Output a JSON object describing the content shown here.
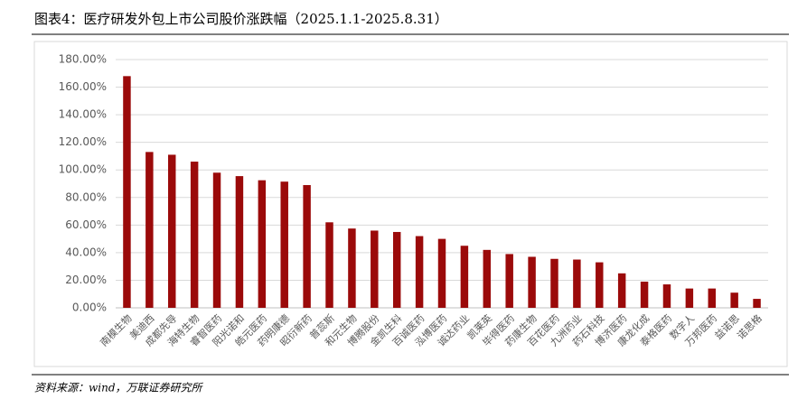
{
  "header": {
    "title": "图表4：医疗研发外包上市公司股价涨跌幅（2025.1.1-2025.8.31）"
  },
  "chart_data": {
    "type": "bar",
    "categories": [
      "南模生物",
      "美迪西",
      "成都先导",
      "海特生物",
      "睿智医药",
      "阳光诺和",
      "皓元医药",
      "药明康德",
      "昭衍新药",
      "普蕊斯",
      "和元生物",
      "博腾股份",
      "金凯生科",
      "百诚医药",
      "泓博医药",
      "诚达药业",
      "凯莱英",
      "毕得医药",
      "药康生物",
      "百花医药",
      "九洲药业",
      "药石科技",
      "博济医药",
      "康龙化成",
      "泰格医药",
      "数字人",
      "万邦医药",
      "益诺思",
      "诺思格"
    ],
    "values": [
      168,
      113,
      111,
      106,
      98,
      95.5,
      92.5,
      91.5,
      89,
      62,
      57.5,
      56,
      55,
      52,
      50,
      45,
      42,
      39,
      37,
      35.5,
      35,
      33,
      25,
      19,
      17,
      14,
      14,
      11,
      6.5
    ],
    "color": "#9b0a0a",
    "ylim": [
      0,
      180
    ],
    "yticks": [
      {
        "value": 0,
        "label": "0.00%"
      },
      {
        "value": 20,
        "label": "20.00%"
      },
      {
        "value": 40,
        "label": "40.00%"
      },
      {
        "value": 60,
        "label": "60.00%"
      },
      {
        "value": 80,
        "label": "80.00%"
      },
      {
        "value": 100,
        "label": "100.00%"
      },
      {
        "value": 120,
        "label": "120.00%"
      },
      {
        "value": 140,
        "label": "140.00%"
      },
      {
        "value": 160,
        "label": "160.00%"
      },
      {
        "value": 180,
        "label": "180.00%"
      }
    ],
    "grid": true
  },
  "footer": {
    "source": "资料来源：wind，万联证券研究所"
  }
}
